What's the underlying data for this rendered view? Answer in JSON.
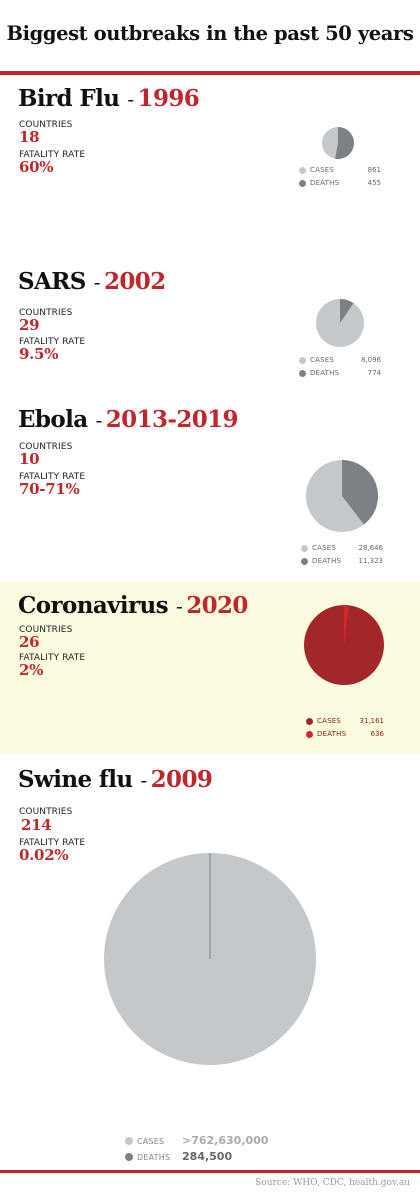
{
  "title": "Biggest outbreaks in the past 50 years",
  "source": "Source: WHO, CDC, health.gov.au",
  "labels": {
    "countries": "COUNTRIES",
    "fatality": "FATALITY RATE"
  },
  "colors": {
    "accent": "#c0272d",
    "cases": "#c5c8cb",
    "deaths": "#7d8185",
    "hl_cases": "#a3262b",
    "hl_deaths": "#d9232d",
    "highlight_bg": "#fbfbdf"
  },
  "chart_data": [
    {
      "type": "pie",
      "name": "Bird Flu",
      "year": "1996",
      "countries": "18",
      "fatality_rate": "60%",
      "legend": [
        {
          "label": "CASES",
          "display": "861",
          "value": 861
        },
        {
          "label": "DEATHS",
          "display": "455",
          "value": 455
        }
      ]
    },
    {
      "type": "pie",
      "name": "SARS",
      "year": "2002",
      "countries": "29",
      "fatality_rate": "9.5%",
      "legend": [
        {
          "label": "CASES",
          "display": "8,096",
          "value": 8096
        },
        {
          "label": "DEATHS",
          "display": "774",
          "value": 774
        }
      ]
    },
    {
      "type": "pie",
      "name": "Ebola",
      "year": "2013-2019",
      "countries": "10",
      "fatality_rate": "70-71%",
      "legend": [
        {
          "label": "CASES",
          "display": "28,646",
          "value": 28646
        },
        {
          "label": "DEATHS",
          "display": "11,323",
          "value": 11323
        }
      ]
    },
    {
      "type": "pie",
      "name": "Coronavirus",
      "year": "2020",
      "countries": "26",
      "fatality_rate": "2%",
      "highlight": true,
      "legend": [
        {
          "label": "CASES",
          "display": "31,161",
          "value": 31161
        },
        {
          "label": "DEATHS",
          "display": "636",
          "value": 636
        }
      ]
    },
    {
      "type": "pie",
      "name": "Swine flu",
      "year": "2009",
      "countries": "214",
      "fatality_rate": "0.02%",
      "legend": [
        {
          "label": "CASES",
          "display": ">762,630,000",
          "value": 762630000
        },
        {
          "label": "DEATHS",
          "display": "284,500",
          "value": 284500
        }
      ]
    }
  ]
}
